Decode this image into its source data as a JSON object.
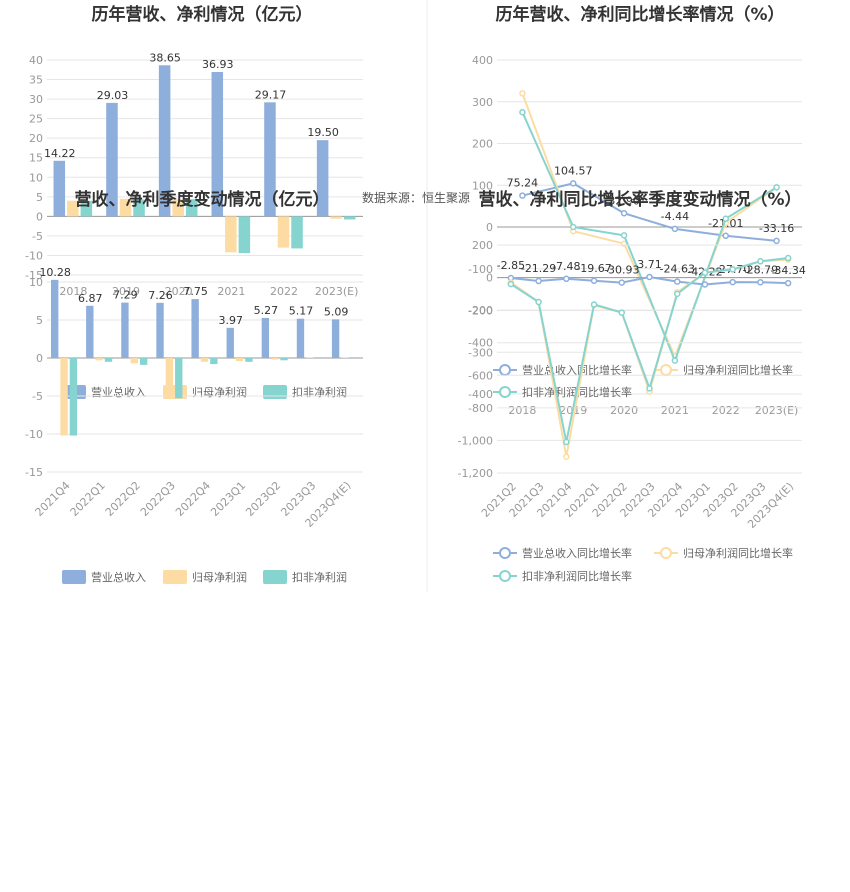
{
  "source_text": "数据来源：恒生聚源",
  "colors": {
    "revenue": "#8eaedc",
    "netprofit": "#fddca3",
    "deducted": "#86d4cf"
  },
  "chart_data": [
    {
      "id": "annual_bar",
      "type": "bar",
      "title": "历年营收、净利情况（亿元）",
      "categories": [
        "2018",
        "2019",
        "2020",
        "2021",
        "2022",
        "2023(E)"
      ],
      "ylim": [
        -15,
        40
      ],
      "yticks": [
        -15,
        -10,
        -5,
        0,
        5,
        10,
        15,
        20,
        25,
        30,
        35,
        40
      ],
      "series": [
        {
          "name": "营业总收入",
          "values": [
            14.22,
            29.03,
            38.65,
            36.93,
            29.17,
            19.5
          ],
          "labels": [
            "14.22",
            "29.03",
            "38.65",
            "36.93",
            "29.17",
            "19.50"
          ]
        },
        {
          "name": "归母净利润",
          "values": [
            4.0,
            4.5,
            4.4,
            -9.2,
            -8.0,
            -0.6
          ]
        },
        {
          "name": "扣非净利润",
          "values": [
            4.0,
            4.3,
            4.4,
            -9.4,
            -8.2,
            -0.8
          ]
        }
      ],
      "legend": "bottom"
    },
    {
      "id": "annual_growth",
      "type": "line",
      "title": "历年营收、净利同比增长率情况（%）",
      "categories": [
        "2018",
        "2019",
        "2020",
        "2021",
        "2022",
        "2023(E)"
      ],
      "ylim": [
        -400,
        400
      ],
      "yticks": [
        -400,
        -300,
        -200,
        -100,
        0,
        100,
        200,
        300,
        400
      ],
      "series": [
        {
          "name": "营业总收入同比增长率",
          "values": [
            75.24,
            104.57,
            32.9,
            -4.44,
            -21.01,
            -33.16
          ],
          "labels": [
            "75.24",
            "104.57",
            "32.90",
            "-4.44",
            "-21.01",
            "-33.16"
          ]
        },
        {
          "name": "归母净利润同比增长率",
          "values": [
            320,
            -10,
            -40,
            -310,
            10,
            95
          ]
        },
        {
          "name": "扣非净利润同比增长率",
          "values": [
            275,
            0,
            -20,
            -320,
            20,
            95
          ]
        }
      ],
      "legend": "bottom"
    },
    {
      "id": "quarterly_bar",
      "type": "bar",
      "title": "营收、净利季度变动情况（亿元）",
      "categories": [
        "2021Q4",
        "2022Q1",
        "2022Q2",
        "2022Q3",
        "2022Q4",
        "2023Q1",
        "2023Q2",
        "2023Q3",
        "2023Q4(E)"
      ],
      "ylim": [
        -15,
        10
      ],
      "yticks": [
        -15,
        -10,
        -5,
        0,
        5,
        10
      ],
      "series": [
        {
          "name": "营业总收入",
          "values": [
            10.28,
            6.87,
            7.29,
            7.26,
            7.75,
            3.97,
            5.27,
            5.17,
            5.09
          ],
          "labels": [
            "10.28",
            "6.87",
            "7.29",
            "7.26",
            "7.75",
            "3.97",
            "5.27",
            "5.17",
            "5.09"
          ]
        },
        {
          "name": "归母净利润",
          "values": [
            -10.2,
            -0.3,
            -0.7,
            -5.2,
            -0.5,
            -0.4,
            -0.2,
            0.1,
            0.1
          ]
        },
        {
          "name": "扣非净利润",
          "values": [
            -10.2,
            -0.5,
            -0.9,
            -5.3,
            -0.8,
            -0.5,
            -0.3,
            0.1,
            0.1
          ]
        }
      ],
      "legend": "bottom"
    },
    {
      "id": "quarterly_growth",
      "type": "line",
      "title": "营收、净利同比增长率季度变动情况（%）",
      "categories": [
        "2021Q2",
        "2021Q3",
        "2021Q4",
        "2022Q1",
        "2022Q2",
        "2022Q3",
        "2022Q4",
        "2023Q1",
        "2023Q2",
        "2023Q3",
        "2023Q4(E)"
      ],
      "ylim": [
        -1200,
        200
      ],
      "yticks": [
        -1200,
        -1000,
        -800,
        -600,
        -400,
        -200,
        0,
        200
      ],
      "series": [
        {
          "name": "营业总收入同比增长率",
          "values": [
            -2.85,
            -21.29,
            -7.48,
            -19.67,
            -30.93,
            3.71,
            -24.63,
            -42.22,
            -27.7,
            -28.79,
            -34.34
          ],
          "labels": [
            "-2.85",
            "-21.29",
            "-7.48",
            "-19.67",
            "-30.93",
            "3.71",
            "-24.63",
            "-42.22",
            "-27.70",
            "-28.79",
            "-34.34"
          ]
        },
        {
          "name": "归母净利润同比增长率",
          "values": [
            -30,
            -150,
            -1100,
            -170,
            -215,
            -700,
            -90,
            30,
            50,
            100,
            110
          ]
        },
        {
          "name": "扣非净利润同比增长率",
          "values": [
            -40,
            -150,
            -1010,
            -165,
            -215,
            -680,
            -100,
            30,
            50,
            100,
            120
          ]
        }
      ],
      "legend": "bottom"
    }
  ]
}
